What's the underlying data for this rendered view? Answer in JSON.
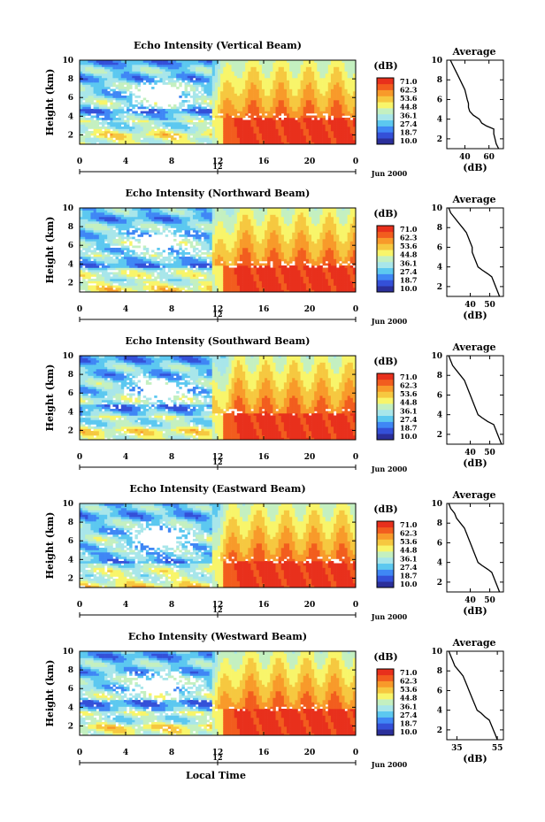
{
  "figure": {
    "xlabel": "Local Time",
    "date_label": "Jun 2000",
    "colorbar_unit": "(dB)",
    "colorbar_ticks": [
      "71.0",
      "62.3",
      "53.6",
      "44.8",
      "36.1",
      "27.4",
      "18.7",
      "10.0"
    ],
    "colorbar_colors": [
      "#2b2f9a",
      "#3450d8",
      "#3f87f5",
      "#5cc8f0",
      "#a8e6ea",
      "#c4f0c0",
      "#f8f56a",
      "#f6c840",
      "#f89a2a",
      "#f25d1e",
      "#e8301c"
    ],
    "avg_title": "Average",
    "avg_xlabel": "(dB)"
  },
  "chart_data": [
    {
      "type": "heatmap",
      "title": "Echo Intensity (Vertical Beam)",
      "ylabel": "Height (km)",
      "x_ticks": [
        "0",
        "4",
        "8",
        "12",
        "16",
        "20",
        "0"
      ],
      "y_ticks": [
        "2",
        "4",
        "6",
        "8",
        "10"
      ],
      "xlim": [
        0,
        24
      ],
      "ylim": [
        1,
        10
      ],
      "mid_tick": "12",
      "avg_profile": {
        "title": "Average",
        "xlabel": "(dB)",
        "x_ticks": [
          "40",
          "60"
        ],
        "xlim": [
          25,
          72
        ],
        "y_ticks": [
          "2",
          "4",
          "6",
          "8",
          "10"
        ],
        "profile": [
          [
            68,
            1.0
          ],
          [
            66,
            1.5
          ],
          [
            65,
            2.0
          ],
          [
            64,
            2.5
          ],
          [
            64,
            3.0
          ],
          [
            58,
            3.3
          ],
          [
            54,
            3.6
          ],
          [
            52,
            4.0
          ],
          [
            47,
            4.4
          ],
          [
            44,
            4.8
          ],
          [
            43,
            5.2
          ],
          [
            43,
            5.6
          ],
          [
            42,
            6.0
          ],
          [
            41,
            6.5
          ],
          [
            40,
            7.0
          ],
          [
            38,
            7.5
          ],
          [
            36,
            8.0
          ],
          [
            34,
            8.5
          ],
          [
            32,
            9.0
          ],
          [
            30,
            9.5
          ],
          [
            28,
            10.0
          ]
        ]
      }
    },
    {
      "type": "heatmap",
      "title": "Echo Intensity (Northward Beam)",
      "ylabel": "Height (km)",
      "x_ticks": [
        "0",
        "4",
        "8",
        "12",
        "16",
        "20",
        "0"
      ],
      "y_ticks": [
        "2",
        "4",
        "6",
        "8",
        "10"
      ],
      "xlim": [
        0,
        24
      ],
      "ylim": [
        1,
        10
      ],
      "mid_tick": "12",
      "avg_profile": {
        "title": "Average",
        "xlabel": "(dB)",
        "x_ticks": [
          "40",
          "50"
        ],
        "xlim": [
          28,
          57
        ],
        "y_ticks": [
          "2",
          "4",
          "6",
          "8",
          "10"
        ],
        "profile": [
          [
            55,
            1.0
          ],
          [
            54,
            1.5
          ],
          [
            53,
            2.0
          ],
          [
            52,
            2.5
          ],
          [
            51,
            3.0
          ],
          [
            49,
            3.3
          ],
          [
            46,
            3.7
          ],
          [
            44,
            4.0
          ],
          [
            43,
            4.5
          ],
          [
            42,
            5.0
          ],
          [
            41,
            5.5
          ],
          [
            41,
            6.0
          ],
          [
            40,
            6.5
          ],
          [
            39,
            7.0
          ],
          [
            38,
            7.5
          ],
          [
            36,
            8.0
          ],
          [
            34,
            8.5
          ],
          [
            32,
            9.0
          ],
          [
            30,
            9.5
          ],
          [
            29,
            10.0
          ]
        ]
      }
    },
    {
      "type": "heatmap",
      "title": "Echo Intensity (Southward Beam)",
      "ylabel": "Height (km)",
      "x_ticks": [
        "0",
        "4",
        "8",
        "12",
        "16",
        "20",
        "0"
      ],
      "y_ticks": [
        "2",
        "4",
        "6",
        "8",
        "10"
      ],
      "xlim": [
        0,
        24
      ],
      "ylim": [
        1,
        10
      ],
      "mid_tick": "12",
      "avg_profile": {
        "title": "Average",
        "xlabel": "(dB)",
        "x_ticks": [
          "40",
          "50"
        ],
        "xlim": [
          28,
          57
        ],
        "y_ticks": [
          "2",
          "4",
          "6",
          "8",
          "10"
        ],
        "profile": [
          [
            56,
            1.0
          ],
          [
            55,
            1.5
          ],
          [
            54,
            2.0
          ],
          [
            53,
            2.5
          ],
          [
            52,
            3.0
          ],
          [
            49,
            3.3
          ],
          [
            46,
            3.7
          ],
          [
            44,
            4.0
          ],
          [
            43,
            4.5
          ],
          [
            42,
            5.0
          ],
          [
            41,
            5.5
          ],
          [
            40,
            6.0
          ],
          [
            39,
            6.5
          ],
          [
            38,
            7.0
          ],
          [
            37,
            7.5
          ],
          [
            35,
            8.0
          ],
          [
            33,
            8.5
          ],
          [
            31,
            9.0
          ],
          [
            30,
            9.5
          ],
          [
            29,
            10.0
          ]
        ]
      }
    },
    {
      "type": "heatmap",
      "title": "Echo Intensity (Eastward Beam)",
      "ylabel": "Height (km)",
      "x_ticks": [
        "0",
        "4",
        "8",
        "12",
        "16",
        "20",
        "0"
      ],
      "y_ticks": [
        "2",
        "4",
        "6",
        "8",
        "10"
      ],
      "xlim": [
        0,
        24
      ],
      "ylim": [
        1,
        10
      ],
      "mid_tick": "12",
      "avg_profile": {
        "title": "Average",
        "xlabel": "(dB)",
        "x_ticks": [
          "40",
          "50"
        ],
        "xlim": [
          28,
          57
        ],
        "y_ticks": [
          "2",
          "4",
          "6",
          "8",
          "10"
        ],
        "profile": [
          [
            55,
            1.0
          ],
          [
            54,
            1.5
          ],
          [
            53,
            2.0
          ],
          [
            52,
            2.5
          ],
          [
            51,
            3.0
          ],
          [
            49,
            3.3
          ],
          [
            46,
            3.7
          ],
          [
            44,
            4.0
          ],
          [
            43,
            4.5
          ],
          [
            42,
            5.0
          ],
          [
            41,
            5.5
          ],
          [
            40,
            6.0
          ],
          [
            39,
            6.5
          ],
          [
            38,
            7.0
          ],
          [
            37,
            7.5
          ],
          [
            35,
            8.0
          ],
          [
            33,
            8.5
          ],
          [
            32,
            9.0
          ],
          [
            30,
            9.5
          ],
          [
            29,
            10.0
          ]
        ]
      }
    },
    {
      "type": "heatmap",
      "title": "Echo Intensity (Westward Beam)",
      "ylabel": "Height (km)",
      "x_ticks": [
        "0",
        "4",
        "8",
        "12",
        "16",
        "20",
        "0"
      ],
      "y_ticks": [
        "2",
        "4",
        "6",
        "8",
        "10"
      ],
      "xlim": [
        0,
        24
      ],
      "ylim": [
        1,
        10
      ],
      "mid_tick": "12",
      "avg_profile": {
        "title": "Average",
        "xlabel": "(dB)",
        "x_ticks": [
          "35",
          "55"
        ],
        "xlim": [
          30,
          58
        ],
        "y_ticks": [
          "2",
          "4",
          "6",
          "8",
          "10"
        ],
        "profile": [
          [
            55,
            1.0
          ],
          [
            54,
            1.5
          ],
          [
            53,
            2.0
          ],
          [
            52,
            2.5
          ],
          [
            51,
            3.0
          ],
          [
            49,
            3.3
          ],
          [
            47,
            3.7
          ],
          [
            45,
            4.0
          ],
          [
            44,
            4.5
          ],
          [
            43,
            5.0
          ],
          [
            42,
            5.5
          ],
          [
            41,
            6.0
          ],
          [
            40,
            6.5
          ],
          [
            39,
            7.0
          ],
          [
            38,
            7.5
          ],
          [
            36,
            8.0
          ],
          [
            34,
            8.5
          ],
          [
            33,
            9.0
          ],
          [
            32,
            9.5
          ],
          [
            31,
            10.0
          ]
        ]
      }
    }
  ]
}
